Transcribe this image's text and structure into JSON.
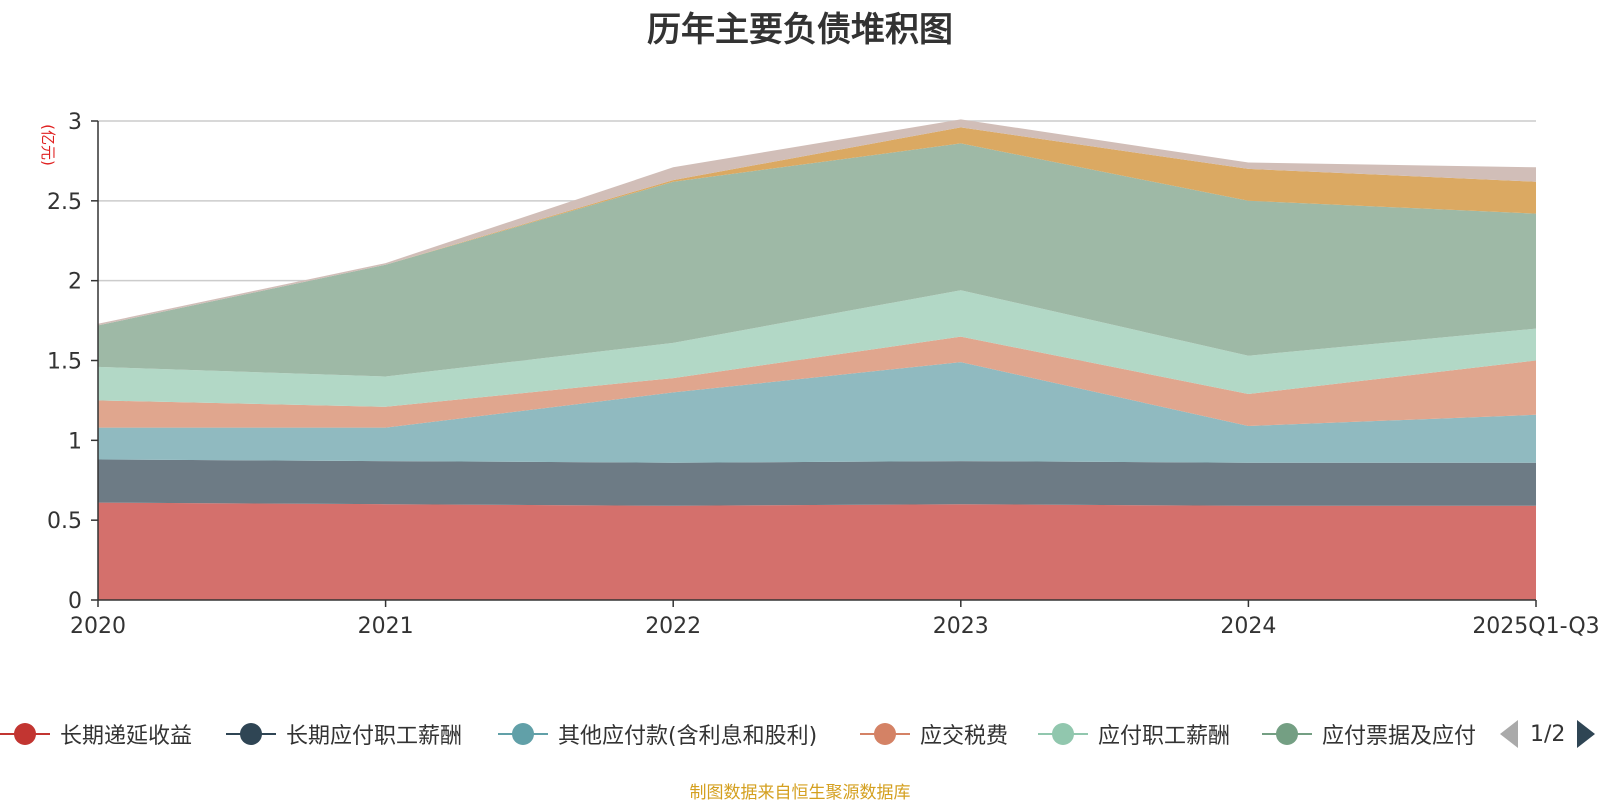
{
  "title": "历年主要负债堆积图",
  "unit_label": "(亿元)",
  "source_note": "制图数据来自恒生聚源数据库",
  "legend_page": "1/2",
  "chart_data": {
    "type": "area",
    "stacked": true,
    "title": "历年主要负债堆积图",
    "ylabel": "(亿元)",
    "ylim": [
      0,
      3
    ],
    "yticks": [
      "0",
      "0.5",
      "1",
      "1.5",
      "2",
      "2.5",
      "3"
    ],
    "grid": true,
    "legend_position": "bottom",
    "categories": [
      "2020",
      "2021",
      "2022",
      "2023",
      "2024",
      "2025Q1-Q3"
    ],
    "series": [
      {
        "name": "长期递延收益",
        "color": "#c23531",
        "fill": "#d4706c",
        "values": [
          0.61,
          0.6,
          0.59,
          0.6,
          0.59,
          0.59
        ]
      },
      {
        "name": "长期应付职工薪酬",
        "color": "#2f4554",
        "fill": "#6d7b85",
        "values": [
          0.27,
          0.27,
          0.27,
          0.27,
          0.27,
          0.27
        ]
      },
      {
        "name": "其他应付款(含利息和股利)",
        "color": "#61a0a8",
        "fill": "#90bac0",
        "values": [
          0.2,
          0.21,
          0.44,
          0.62,
          0.23,
          0.3
        ]
      },
      {
        "name": "应交税费",
        "color": "#d48265",
        "fill": "#e0a68e",
        "values": [
          0.17,
          0.13,
          0.09,
          0.16,
          0.2,
          0.34
        ]
      },
      {
        "name": "应付职工薪酬",
        "color": "#91c7ae",
        "fill": "#b2d8c6",
        "values": [
          0.21,
          0.19,
          0.22,
          0.29,
          0.24,
          0.2
        ]
      },
      {
        "name": "应付票据及应付",
        "color": "#749f83",
        "fill": "#9eb9a6",
        "values": [
          0.26,
          0.7,
          1.01,
          0.92,
          0.97,
          0.72
        ]
      },
      {
        "name": "",
        "color": "#ca8622",
        "fill": "#dba962",
        "values": [
          0.0,
          0.0,
          0.01,
          0.1,
          0.2,
          0.2
        ]
      },
      {
        "name": "",
        "color": "#bda29a",
        "fill": "#d1beb8",
        "values": [
          0.01,
          0.01,
          0.08,
          0.05,
          0.04,
          0.09
        ]
      }
    ]
  }
}
